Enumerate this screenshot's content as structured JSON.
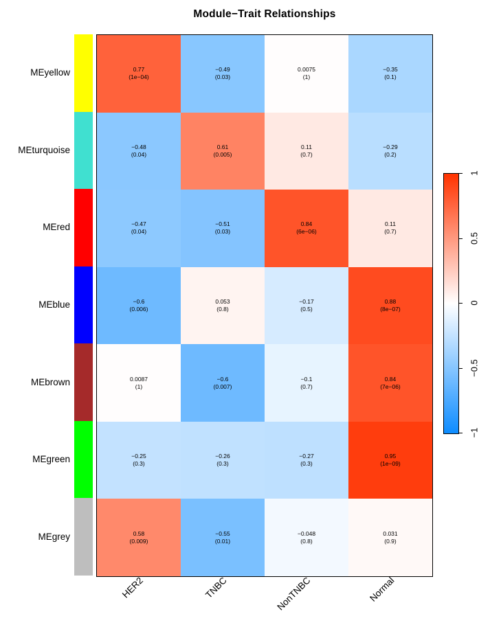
{
  "title": "Module−Trait Relationships",
  "chart_data": {
    "type": "heatmap",
    "title": "Module−Trait Relationships",
    "columns": [
      "HER2",
      "TNBC",
      "NonTNBC",
      "Normal"
    ],
    "rows": [
      {
        "label": "MEyellow",
        "module_color": "#FFFF00",
        "values": [
          0.77,
          -0.49,
          0.0075,
          -0.35
        ],
        "value_labels": [
          "0.77",
          "−0.49",
          "0.0075",
          "−0.35"
        ],
        "p_labels": [
          "(1e−04)",
          "(0.03)",
          "(1)",
          "(0.1)"
        ]
      },
      {
        "label": "MEturquoise",
        "module_color": "#40E0D0",
        "values": [
          -0.48,
          0.61,
          0.11,
          -0.29
        ],
        "value_labels": [
          "−0.48",
          "0.61",
          "0.11",
          "−0.29"
        ],
        "p_labels": [
          "(0.04)",
          "(0.005)",
          "(0.7)",
          "(0.2)"
        ]
      },
      {
        "label": "MEred",
        "module_color": "#FF0000",
        "values": [
          -0.47,
          -0.51,
          0.84,
          0.11
        ],
        "value_labels": [
          "−0.47",
          "−0.51",
          "0.84",
          "0.11"
        ],
        "p_labels": [
          "(0.04)",
          "(0.03)",
          "(6e−06)",
          "(0.7)"
        ]
      },
      {
        "label": "MEblue",
        "module_color": "#0000FF",
        "values": [
          -0.6,
          0.053,
          -0.17,
          0.88
        ],
        "value_labels": [
          "−0.6",
          "0.053",
          "−0.17",
          "0.88"
        ],
        "p_labels": [
          "(0.006)",
          "(0.8)",
          "(0.5)",
          "(8e−07)"
        ]
      },
      {
        "label": "MEbrown",
        "module_color": "#A52A2A",
        "values": [
          0.0087,
          -0.6,
          -0.1,
          0.84
        ],
        "value_labels": [
          "0.0087",
          "−0.6",
          "−0.1",
          "0.84"
        ],
        "p_labels": [
          "(1)",
          "(0.007)",
          "(0.7)",
          "(7e−06)"
        ]
      },
      {
        "label": "MEgreen",
        "module_color": "#00FF00",
        "values": [
          -0.25,
          -0.26,
          -0.27,
          0.95
        ],
        "value_labels": [
          "−0.25",
          "−0.26",
          "−0.27",
          "0.95"
        ],
        "p_labels": [
          "(0.3)",
          "(0.3)",
          "(0.3)",
          "(1e−09)"
        ]
      },
      {
        "label": "MEgrey",
        "module_color": "#BEBEBE",
        "values": [
          0.58,
          -0.55,
          -0.048,
          0.031
        ],
        "value_labels": [
          "0.58",
          "−0.55",
          "−0.048",
          "0.031"
        ],
        "p_labels": [
          "(0.009)",
          "(0.01)",
          "(0.8)",
          "(0.9)"
        ]
      }
    ],
    "colorscale": {
      "min": -1,
      "max": 1,
      "min_color": "#0D8CFF",
      "mid_color": "#FFFFFF",
      "max_color": "#FF3300",
      "legend_position": "right",
      "legend_tick_values": [
        1,
        0.5,
        0,
        -0.5,
        -1
      ],
      "legend_tick_labels": [
        "1",
        "0.5",
        "0",
        "−0.5",
        "−1"
      ]
    }
  }
}
